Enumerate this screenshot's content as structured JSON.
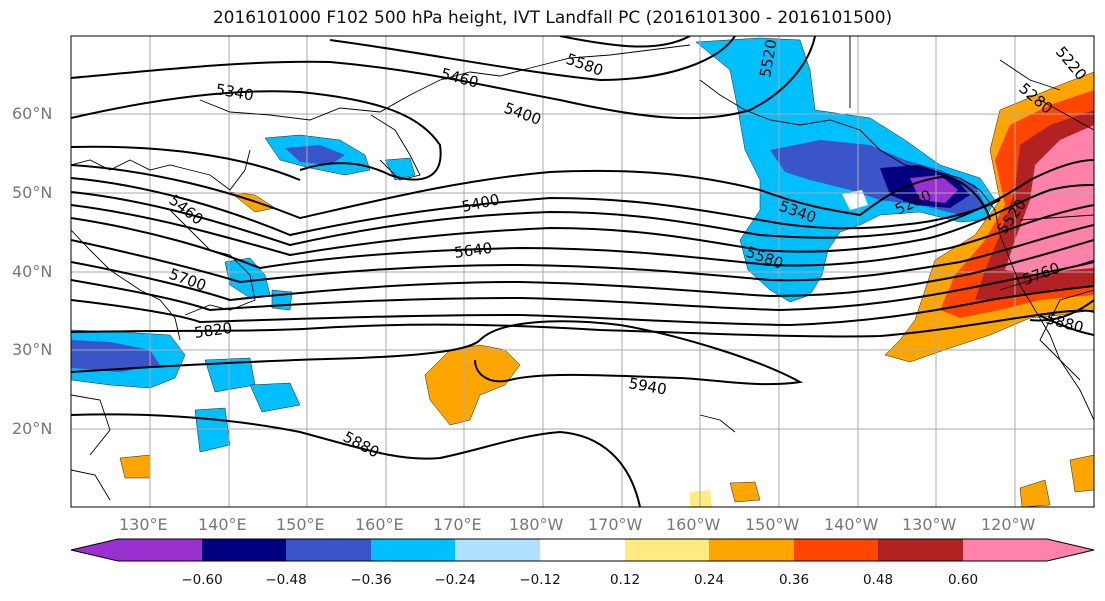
{
  "title": "2016101000 F102 500 hPa height, IVT Landfall PC (2016101300 - 2016101500)",
  "map": {
    "lon_labels": [
      "130°E",
      "140°E",
      "150°E",
      "160°E",
      "170°E",
      "180°W",
      "170°W",
      "160°W",
      "150°W",
      "140°W",
      "130°W",
      "120°W"
    ],
    "lat_labels": [
      "60°N",
      "50°N",
      "40°N",
      "30°N",
      "20°N"
    ],
    "contour_labels": [
      "5340",
      "5460",
      "5580",
      "5520",
      "5280",
      "5220",
      "5400",
      "5400",
      "5460",
      "5700",
      "5640",
      "5340",
      "5580",
      "5280",
      "5520",
      "5760",
      "5820",
      "5940",
      "5880",
      "5880"
    ]
  },
  "colorbar": {
    "colors": [
      "#9b30d0",
      "#000080",
      "#3a55c9",
      "#00bfff",
      "#b0e2ff",
      "#ffffff",
      "#ffeb80",
      "#ffa500",
      "#ff4500",
      "#b22222",
      "#ff82ab"
    ],
    "ticks": [
      "−0.60",
      "−0.48",
      "−0.36",
      "−0.24",
      "−0.12",
      "0.12",
      "0.24",
      "0.36",
      "0.48",
      "0.60"
    ]
  }
}
